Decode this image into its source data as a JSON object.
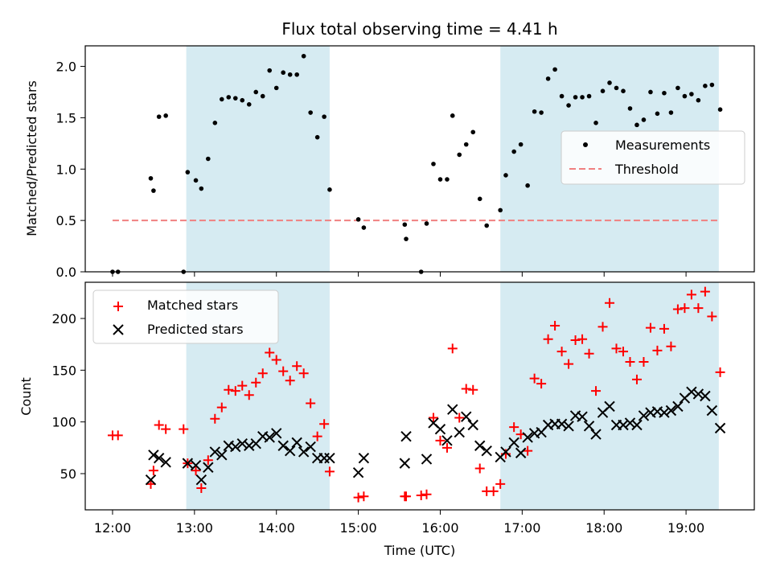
{
  "chart_data": [
    {
      "type": "scatter",
      "title": "Flux total observing time = 4.41 h",
      "xlabel": "",
      "ylabel": "Matched/Predicted stars",
      "ylim": [
        0,
        2.2
      ],
      "yticks": [
        "0.0",
        "0.5",
        "1.0",
        "1.5",
        "2.0"
      ],
      "shaded_intervals": [
        [
          "12:54",
          "14:39"
        ],
        [
          "16:44",
          "19:24"
        ]
      ],
      "legend": {
        "placement": "center-right",
        "entries": [
          "Measurements",
          "Threshold"
        ]
      },
      "threshold": {
        "name": "Threshold",
        "y": 0.5,
        "x": [
          "12:00",
          "19:24"
        ],
        "color": "#f08080"
      },
      "series": [
        {
          "name": "Measurements",
          "color": "#000000",
          "points": [
            [
              "12:00",
              0.0
            ],
            [
              "12:04",
              0.0
            ],
            [
              "12:28",
              0.91
            ],
            [
              "12:30",
              0.79
            ],
            [
              "12:34",
              1.51
            ],
            [
              "12:39",
              1.52
            ],
            [
              "12:52",
              0.0
            ],
            [
              "12:55",
              0.97
            ],
            [
              "13:01",
              0.89
            ],
            [
              "13:05",
              0.81
            ],
            [
              "13:10",
              1.1
            ],
            [
              "13:15",
              1.45
            ],
            [
              "13:20",
              1.68
            ],
            [
              "13:25",
              1.7
            ],
            [
              "13:30",
              1.69
            ],
            [
              "13:35",
              1.67
            ],
            [
              "13:40",
              1.63
            ],
            [
              "13:45",
              1.75
            ],
            [
              "13:50",
              1.71
            ],
            [
              "13:55",
              1.96
            ],
            [
              "14:00",
              1.79
            ],
            [
              "14:05",
              1.94
            ],
            [
              "14:10",
              1.92
            ],
            [
              "14:15",
              1.92
            ],
            [
              "14:20",
              2.1
            ],
            [
              "14:25",
              1.55
            ],
            [
              "14:30",
              1.31
            ],
            [
              "14:35",
              1.51
            ],
            [
              "14:39",
              0.8
            ],
            [
              "15:00",
              0.51
            ],
            [
              "15:04",
              0.43
            ],
            [
              "15:34",
              0.46
            ],
            [
              "15:35",
              0.32
            ],
            [
              "15:46",
              0.0
            ],
            [
              "15:50",
              0.47
            ],
            [
              "15:55",
              1.05
            ],
            [
              "16:00",
              0.9
            ],
            [
              "16:05",
              0.9
            ],
            [
              "16:09",
              1.52
            ],
            [
              "16:14",
              1.14
            ],
            [
              "16:19",
              1.24
            ],
            [
              "16:24",
              1.36
            ],
            [
              "16:29",
              0.71
            ],
            [
              "16:34",
              0.45
            ],
            [
              "16:44",
              0.6
            ],
            [
              "16:48",
              0.94
            ],
            [
              "16:54",
              1.17
            ],
            [
              "16:59",
              1.24
            ],
            [
              "17:04",
              0.84
            ],
            [
              "17:09",
              1.56
            ],
            [
              "17:14",
              1.55
            ],
            [
              "17:19",
              1.88
            ],
            [
              "17:24",
              1.97
            ],
            [
              "17:29",
              1.71
            ],
            [
              "17:34",
              1.62
            ],
            [
              "17:39",
              1.7
            ],
            [
              "17:44",
              1.7
            ],
            [
              "17:49",
              1.71
            ],
            [
              "17:54",
              1.45
            ],
            [
              "17:59",
              1.76
            ],
            [
              "18:04",
              1.84
            ],
            [
              "18:09",
              1.79
            ],
            [
              "18:14",
              1.76
            ],
            [
              "18:19",
              1.59
            ],
            [
              "18:24",
              1.43
            ],
            [
              "18:29",
              1.48
            ],
            [
              "18:34",
              1.75
            ],
            [
              "18:39",
              1.54
            ],
            [
              "18:44",
              1.74
            ],
            [
              "18:49",
              1.55
            ],
            [
              "18:54",
              1.79
            ],
            [
              "18:59",
              1.71
            ],
            [
              "19:04",
              1.73
            ],
            [
              "19:09",
              1.67
            ],
            [
              "19:14",
              1.81
            ],
            [
              "19:19",
              1.82
            ],
            [
              "19:25",
              1.58
            ]
          ]
        }
      ]
    },
    {
      "type": "scatter",
      "title": "",
      "xlabel": "Time (UTC)",
      "ylabel": "Count",
      "ylim": [
        15,
        235
      ],
      "yticks": [
        "50",
        "100",
        "150",
        "200"
      ],
      "xlim": [
        "11:40",
        "19:50"
      ],
      "xticks": [
        "12:00",
        "13:00",
        "14:00",
        "15:00",
        "16:00",
        "17:00",
        "18:00",
        "19:00"
      ],
      "shaded_intervals": [
        [
          "12:54",
          "14:39"
        ],
        [
          "16:44",
          "19:24"
        ]
      ],
      "legend": {
        "placement": "top-left",
        "entries": [
          "Matched stars",
          "Predicted stars"
        ]
      },
      "series": [
        {
          "name": "Matched stars",
          "marker": "plus",
          "color": "#ff0000",
          "points": [
            [
              "12:00",
              87
            ],
            [
              "12:04",
              87
            ],
            [
              "12:28",
              40
            ],
            [
              "12:30",
              53
            ],
            [
              "12:34",
              97
            ],
            [
              "12:39",
              93
            ],
            [
              "12:52",
              93
            ],
            [
              "12:55",
              60
            ],
            [
              "13:01",
              53
            ],
            [
              "13:05",
              36
            ],
            [
              "13:10",
              63
            ],
            [
              "13:15",
              103
            ],
            [
              "13:20",
              114
            ],
            [
              "13:25",
              131
            ],
            [
              "13:30",
              130
            ],
            [
              "13:35",
              135
            ],
            [
              "13:40",
              126
            ],
            [
              "13:45",
              138
            ],
            [
              "13:50",
              147
            ],
            [
              "13:55",
              167
            ],
            [
              "14:00",
              160
            ],
            [
              "14:05",
              149
            ],
            [
              "14:10",
              140
            ],
            [
              "14:15",
              154
            ],
            [
              "14:20",
              147
            ],
            [
              "14:25",
              118
            ],
            [
              "14:30",
              86
            ],
            [
              "14:35",
              98
            ],
            [
              "14:39",
              52
            ],
            [
              "15:00",
              27
            ],
            [
              "15:04",
              28
            ],
            [
              "15:34",
              28
            ],
            [
              "15:35",
              28
            ],
            [
              "15:46",
              29
            ],
            [
              "15:50",
              30
            ],
            [
              "15:55",
              104
            ],
            [
              "16:00",
              82
            ],
            [
              "16:05",
              75
            ],
            [
              "16:09",
              171
            ],
            [
              "16:14",
              104
            ],
            [
              "16:19",
              132
            ],
            [
              "16:24",
              131
            ],
            [
              "16:29",
              55
            ],
            [
              "16:34",
              33
            ],
            [
              "16:39",
              33
            ],
            [
              "16:44",
              40
            ],
            [
              "16:48",
              69
            ],
            [
              "16:54",
              95
            ],
            [
              "16:59",
              88
            ],
            [
              "17:04",
              72
            ],
            [
              "17:09",
              142
            ],
            [
              "17:14",
              137
            ],
            [
              "17:19",
              180
            ],
            [
              "17:24",
              193
            ],
            [
              "17:29",
              168
            ],
            [
              "17:34",
              156
            ],
            [
              "17:39",
              179
            ],
            [
              "17:44",
              180
            ],
            [
              "17:49",
              166
            ],
            [
              "17:54",
              130
            ],
            [
              "17:59",
              192
            ],
            [
              "18:04",
              215
            ],
            [
              "18:09",
              171
            ],
            [
              "18:14",
              168
            ],
            [
              "18:19",
              158
            ],
            [
              "18:24",
              141
            ],
            [
              "18:29",
              158
            ],
            [
              "18:34",
              191
            ],
            [
              "18:39",
              169
            ],
            [
              "18:44",
              190
            ],
            [
              "18:49",
              173
            ],
            [
              "18:54",
              209
            ],
            [
              "18:59",
              210
            ],
            [
              "19:04",
              223
            ],
            [
              "19:09",
              210
            ],
            [
              "19:14",
              226
            ],
            [
              "19:19",
              202
            ],
            [
              "19:25",
              148
            ]
          ]
        },
        {
          "name": "Predicted stars",
          "marker": "x",
          "color": "#000000",
          "points": [
            [
              "12:28",
              44
            ],
            [
              "12:30",
              68
            ],
            [
              "12:34",
              65
            ],
            [
              "12:39",
              61
            ],
            [
              "12:55",
              60
            ],
            [
              "13:01",
              58
            ],
            [
              "13:05",
              44
            ],
            [
              "13:10",
              56
            ],
            [
              "13:15",
              71
            ],
            [
              "13:20",
              68
            ],
            [
              "13:25",
              77
            ],
            [
              "13:30",
              76
            ],
            [
              "13:35",
              79
            ],
            [
              "13:40",
              77
            ],
            [
              "13:45",
              79
            ],
            [
              "13:50",
              86
            ],
            [
              "13:55",
              85
            ],
            [
              "14:00",
              89
            ],
            [
              "14:05",
              77
            ],
            [
              "14:10",
              72
            ],
            [
              "14:15",
              80
            ],
            [
              "14:20",
              71
            ],
            [
              "14:25",
              76
            ],
            [
              "14:30",
              65
            ],
            [
              "14:35",
              65
            ],
            [
              "14:39",
              65
            ],
            [
              "15:00",
              51
            ],
            [
              "15:04",
              65
            ],
            [
              "15:34",
              60
            ],
            [
              "15:35",
              86
            ],
            [
              "15:50",
              64
            ],
            [
              "15:55",
              99
            ],
            [
              "16:00",
              93
            ],
            [
              "16:05",
              82
            ],
            [
              "16:09",
              112
            ],
            [
              "16:14",
              90
            ],
            [
              "16:19",
              105
            ],
            [
              "16:24",
              97
            ],
            [
              "16:29",
              77
            ],
            [
              "16:34",
              72
            ],
            [
              "16:44",
              66
            ],
            [
              "16:48",
              71
            ],
            [
              "16:54",
              80
            ],
            [
              "16:59",
              70
            ],
            [
              "17:04",
              85
            ],
            [
              "17:09",
              89
            ],
            [
              "17:14",
              90
            ],
            [
              "17:19",
              97
            ],
            [
              "17:24",
              98
            ],
            [
              "17:29",
              98
            ],
            [
              "17:34",
              96
            ],
            [
              "17:39",
              106
            ],
            [
              "17:44",
              105
            ],
            [
              "17:49",
              96
            ],
            [
              "17:54",
              88
            ],
            [
              "17:59",
              109
            ],
            [
              "18:04",
              115
            ],
            [
              "18:09",
              97
            ],
            [
              "18:14",
              97
            ],
            [
              "18:19",
              99
            ],
            [
              "18:24",
              97
            ],
            [
              "18:29",
              106
            ],
            [
              "18:34",
              109
            ],
            [
              "18:39",
              110
            ],
            [
              "18:44",
              109
            ],
            [
              "18:49",
              111
            ],
            [
              "18:54",
              115
            ],
            [
              "18:59",
              123
            ],
            [
              "19:04",
              129
            ],
            [
              "19:09",
              127
            ],
            [
              "19:14",
              125
            ],
            [
              "19:19",
              111
            ],
            [
              "19:25",
              94
            ]
          ]
        }
      ]
    }
  ]
}
